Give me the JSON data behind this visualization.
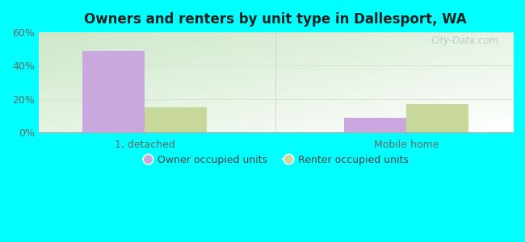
{
  "title": "Owners and renters by unit type in Dallesport, WA",
  "categories": [
    "1, detached",
    "Mobile home"
  ],
  "owner_values": [
    49,
    9
  ],
  "renter_values": [
    15,
    17
  ],
  "owner_color": "#c9a8e0",
  "renter_color": "#c8d89a",
  "owner_label": "Owner occupied units",
  "renter_label": "Renter occupied units",
  "ylim": [
    0,
    60
  ],
  "yticks": [
    0,
    20,
    40,
    60
  ],
  "ytick_labels": [
    "0%",
    "20%",
    "40%",
    "60%"
  ],
  "outer_background": "#00ffff",
  "bar_width": 0.38,
  "group_positions": [
    1.0,
    2.6
  ],
  "xlim": [
    0.35,
    3.25
  ],
  "gradient_colors": [
    "#d8efd4",
    "#f0f8f0",
    "#f8fcfc",
    "#ffffff"
  ],
  "grid_color": "#d8e8d0",
  "title_fontsize": 12,
  "tick_fontsize": 9,
  "legend_fontsize": 9
}
